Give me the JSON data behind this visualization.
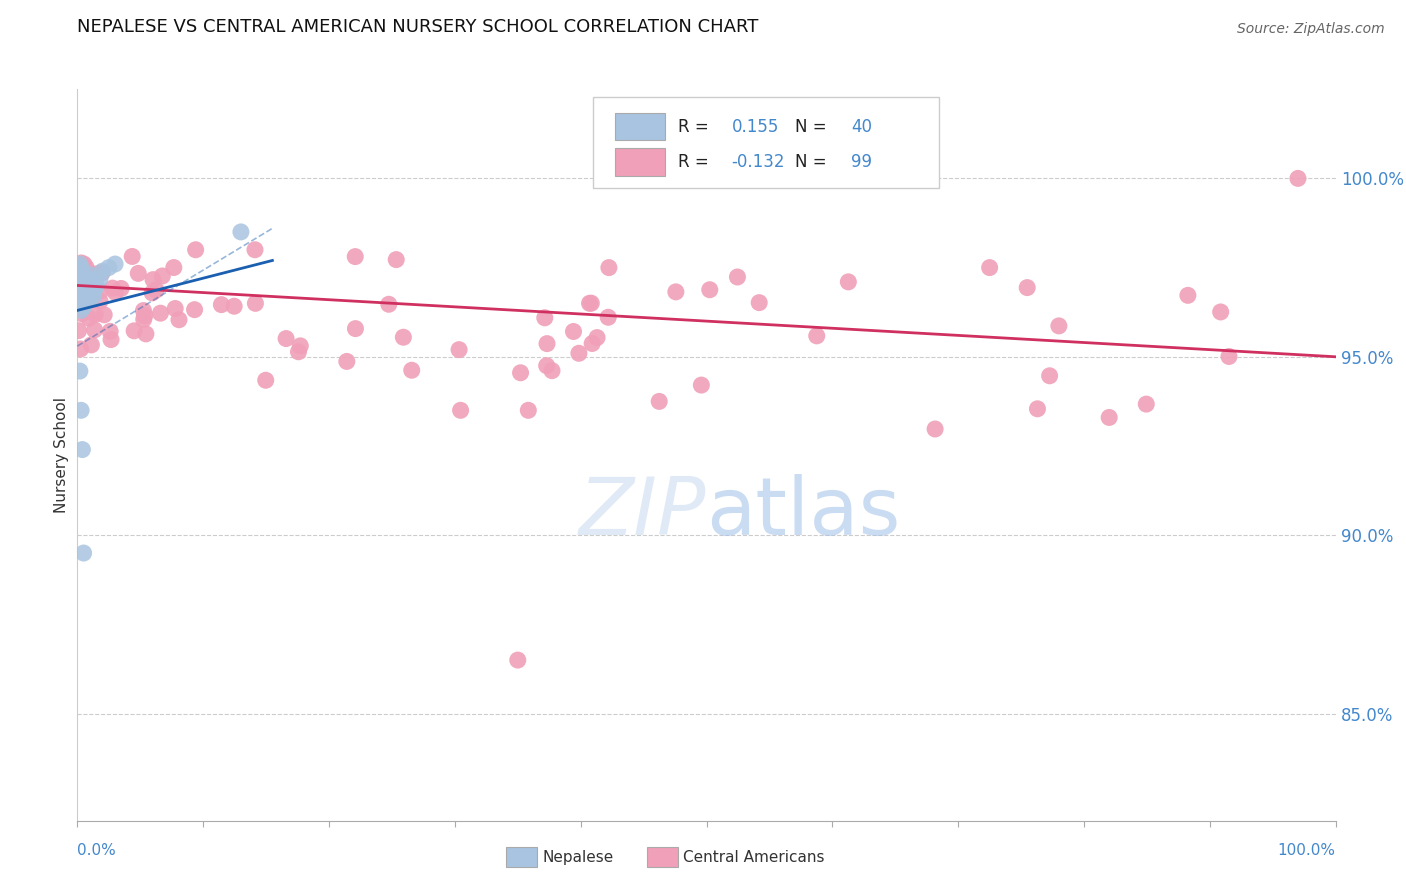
{
  "title": "NEPALESE VS CENTRAL AMERICAN NURSERY SCHOOL CORRELATION CHART",
  "source": "Source: ZipAtlas.com",
  "ylabel": "Nursery School",
  "ylabel_ticks": [
    "100.0%",
    "95.0%",
    "90.0%",
    "85.0%"
  ],
  "ylabel_tick_vals": [
    1.0,
    0.95,
    0.9,
    0.85
  ],
  "r_nepalese": 0.155,
  "n_nepalese": 40,
  "r_central": -0.132,
  "n_central": 99,
  "nepalese_color": "#a8c4e0",
  "nepalese_line_color": "#1a5fb0",
  "central_color": "#f0a0b8",
  "central_line_color": "#d03060",
  "background_color": "#ffffff",
  "grid_color": "#cccccc",
  "xlim": [
    0.0,
    1.0
  ],
  "ylim": [
    0.82,
    1.025
  ]
}
